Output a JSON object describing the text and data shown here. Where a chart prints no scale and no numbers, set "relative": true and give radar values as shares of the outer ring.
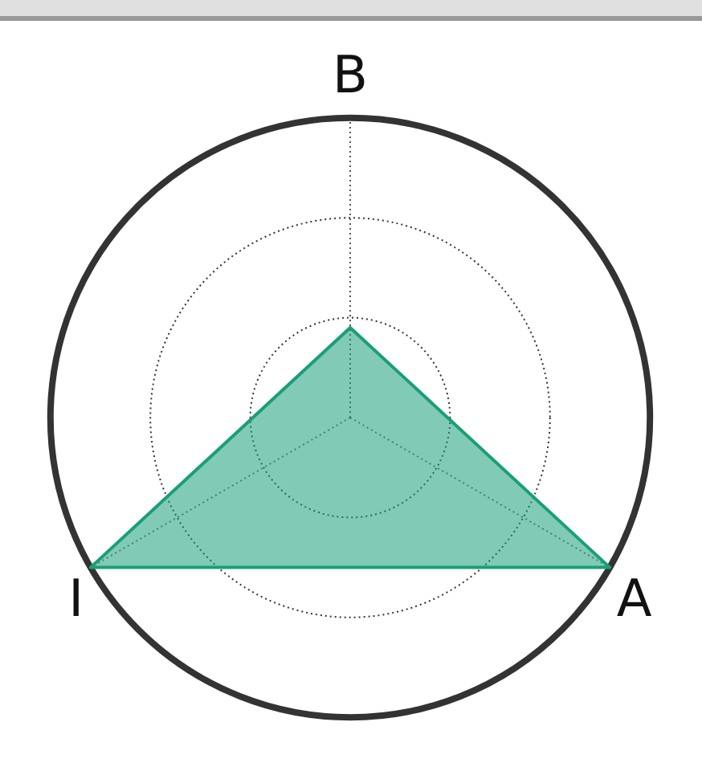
{
  "chart_data": {
    "type": "radar",
    "relative": true,
    "categories": [
      "B",
      "A",
      "I"
    ],
    "series": [
      {
        "color": "#1a9e78",
        "values": [
          0.3,
          1,
          1
        ]
      }
    ]
  }
}
